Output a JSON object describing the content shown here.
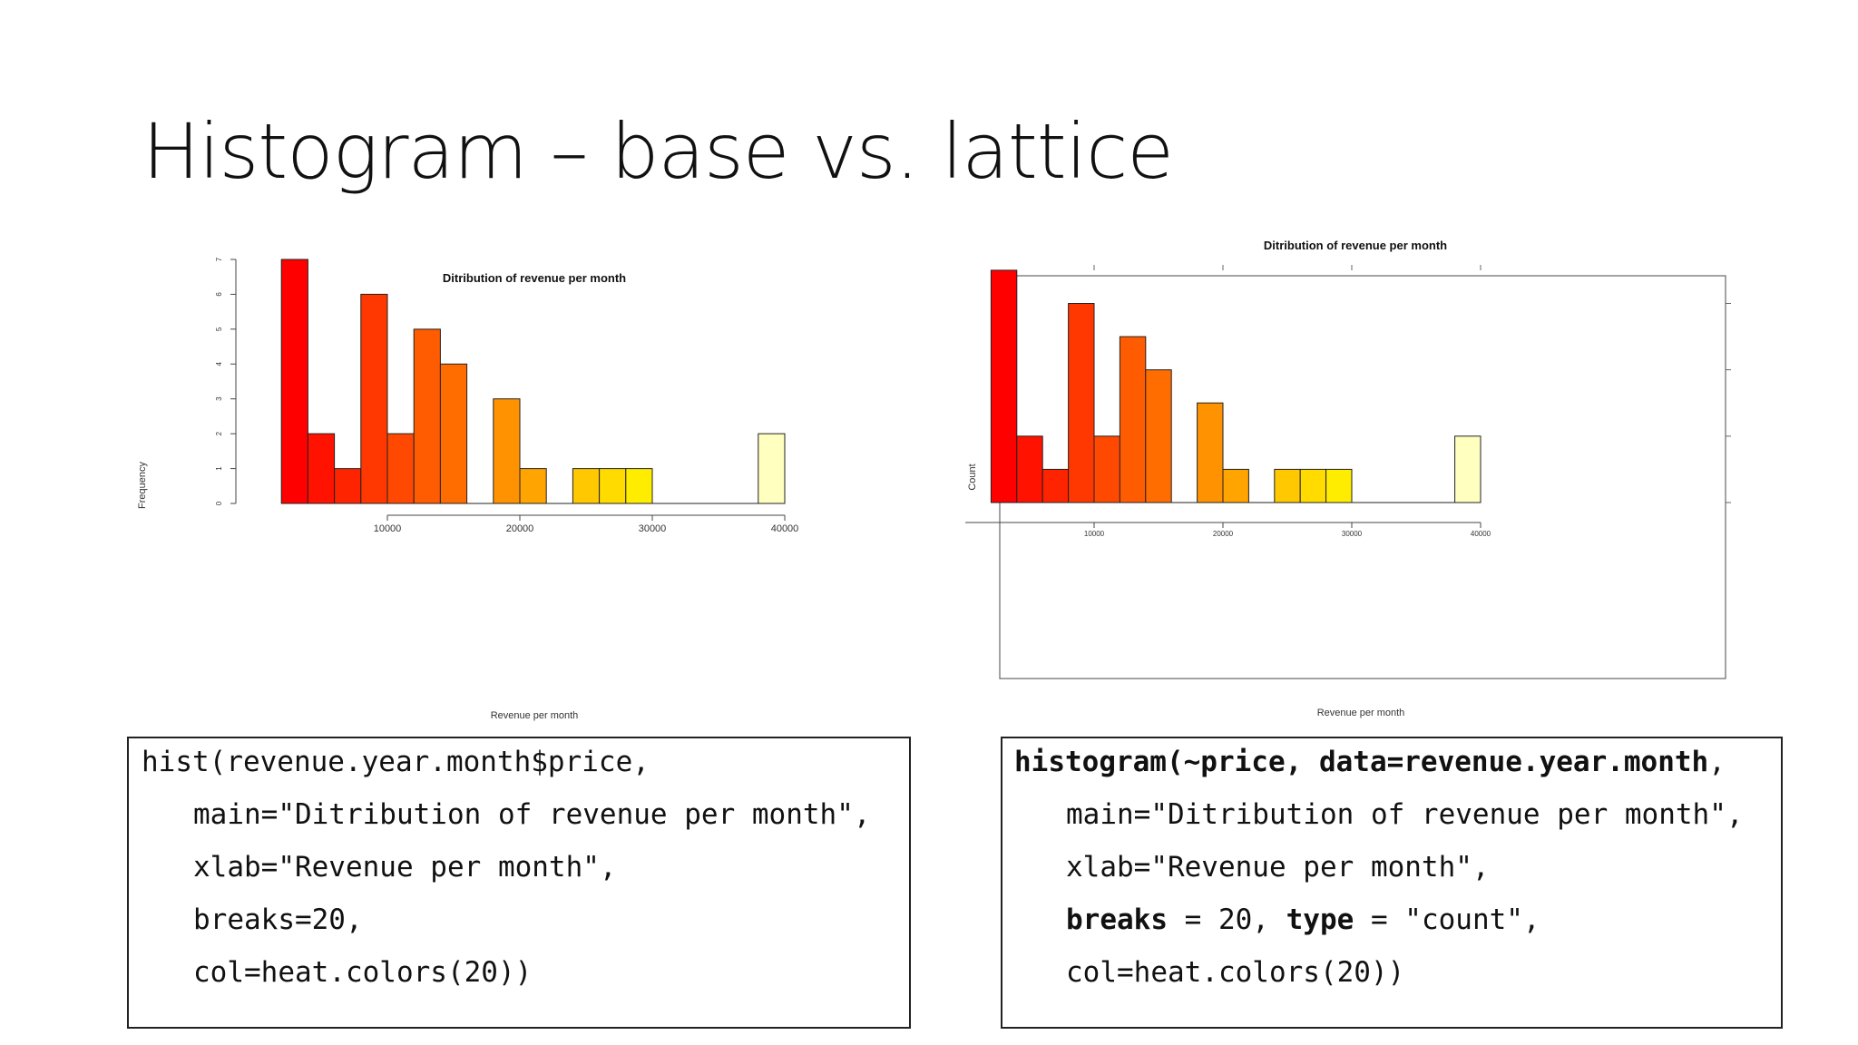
{
  "slide": {
    "title": "Histogram – base vs. lattice"
  },
  "chart_data": [
    {
      "type": "bar",
      "title": "Ditribution of revenue per month",
      "xlabel": "Revenue per month",
      "ylabel": "Frequency",
      "bin_edges": [
        2000,
        4000,
        6000,
        8000,
        10000,
        12000,
        14000,
        16000,
        18000,
        20000,
        22000,
        24000,
        26000,
        28000,
        30000,
        32000,
        34000,
        36000,
        38000,
        40000
      ],
      "values": [
        7,
        2,
        1,
        6,
        2,
        5,
        4,
        0,
        3,
        1,
        0,
        1,
        1,
        1,
        0,
        0,
        0,
        0,
        2
      ],
      "x_ticks": [
        "10000",
        "20000",
        "30000",
        "40000"
      ],
      "y_ticks": [
        "0",
        "1",
        "2",
        "3",
        "4",
        "5",
        "6",
        "7"
      ],
      "ylim": [
        0,
        7
      ],
      "colors": [
        "#FF0000",
        "#FF1200",
        "#FF2400",
        "#FF3700",
        "#FF4900",
        "#FF5B00",
        "#FF6D00",
        "#FF8000",
        "#FF9200",
        "#FFA400",
        "#FFB600",
        "#FFC800",
        "#FFDB00",
        "#FFED00",
        "#FFFF00",
        "#FFFF2A",
        "#FFFF6A",
        "#FFFF9F",
        "#FFFFBF"
      ],
      "grid": false
    },
    {
      "type": "bar",
      "title": "Ditribution of revenue per month",
      "xlabel": "Revenue per month",
      "ylabel": "Count",
      "bin_edges": [
        2000,
        4000,
        6000,
        8000,
        10000,
        12000,
        14000,
        16000,
        18000,
        20000,
        22000,
        24000,
        26000,
        28000,
        30000,
        32000,
        34000,
        36000,
        38000,
        40000
      ],
      "values": [
        7,
        2,
        1,
        6,
        2,
        5,
        4,
        0,
        3,
        1,
        0,
        1,
        1,
        1,
        0,
        0,
        0,
        0,
        2
      ],
      "x_ticks": [
        "10000",
        "20000",
        "30000",
        "40000"
      ],
      "y_ticks": [
        "0",
        "2",
        "4",
        "6"
      ],
      "ylim": [
        0,
        7
      ],
      "colors": [
        "#FF0000",
        "#FF1200",
        "#FF2400",
        "#FF3700",
        "#FF4900",
        "#FF5B00",
        "#FF6D00",
        "#FF8000",
        "#FF9200",
        "#FFA400",
        "#FFB600",
        "#FFC800",
        "#FFDB00",
        "#FFED00",
        "#FFFF00",
        "#FFFF2A",
        "#FFFF6A",
        "#FFFF9F",
        "#FFFFBF"
      ],
      "grid": false
    }
  ],
  "code": {
    "left": {
      "l1": "hist(revenue.year.month$price,",
      "l2": "main=\"Ditribution of revenue per month\",",
      "l3": "xlab=\"Revenue per month\",",
      "l4": "breaks=20,",
      "l5": "col=heat.colors(20))"
    },
    "right": {
      "l1_bold_a": "histogram(~price,",
      "l1_bold_b": "data=revenue.year.month",
      "l1_tail": ",",
      "l2": "main=\"Ditribution of revenue per month\",",
      "l3": "xlab=\"Revenue per month\",",
      "l4_bold_a": "breaks",
      "l4_mid": " = 20, ",
      "l4_bold_b": "type",
      "l4_tail": " = \"count\",",
      "l5": "col=heat.colors(20))"
    }
  }
}
